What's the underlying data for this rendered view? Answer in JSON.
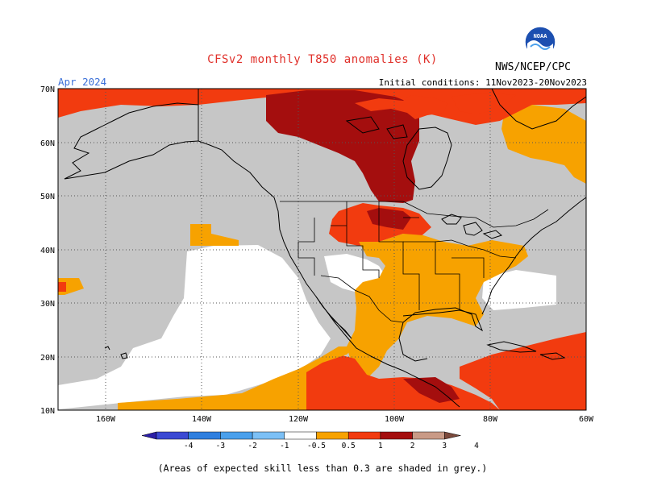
{
  "header": {
    "title": "CFSv2 monthly T850 anomalies (K)",
    "month": "Apr 2024",
    "initial_conditions": "Initial conditions: 11Nov2023-20Nov2023",
    "agency": "NWS/NCEP/CPC",
    "logo_label": "NOAA"
  },
  "map": {
    "lat_labels": [
      "70N",
      "60N",
      "50N",
      "40N",
      "30N",
      "20N",
      "10N"
    ],
    "lon_labels": [
      "160W",
      "140W",
      "120W",
      "100W",
      "80W",
      "60W"
    ],
    "lon_range": [
      -170,
      -60
    ],
    "lat_range": [
      10,
      70
    ]
  },
  "colorbar": {
    "labels": [
      "-4",
      "-3",
      "-2",
      "-1",
      "-0.5",
      "0.5",
      "1",
      "2",
      "3",
      "4"
    ],
    "colors": [
      "#2c1fa8",
      "#3b49d3",
      "#2f7fdf",
      "#4aa0ec",
      "#7cc0f6",
      "#ffffff",
      "#f7a200",
      "#f23b0f",
      "#a40e0e",
      "#c99a86",
      "#7b4a3c"
    ]
  },
  "colors": {
    "grey": "#c6c6c6",
    "orange": "#f7a200",
    "red_orange": "#f23b0f",
    "dark_red": "#a40e0e",
    "white": "#ffffff"
  },
  "footnote": "(Areas of expected skill less than 0.3 are shaded in grey.)"
}
